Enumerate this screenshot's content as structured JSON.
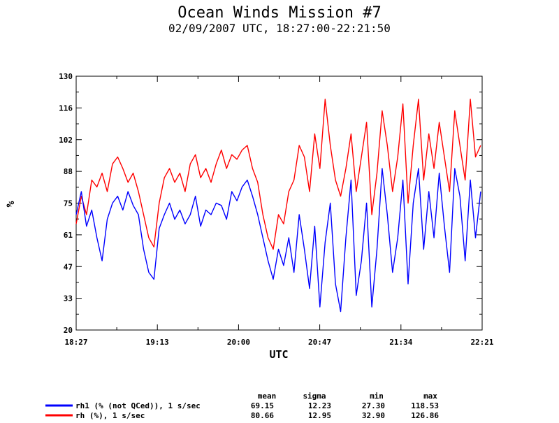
{
  "chart_data": {
    "type": "line",
    "title": "Ocean Winds Mission #7",
    "subtitle": "02/09/2007  UTC, 18:27:00-22:21:50",
    "xlabel": "UTC",
    "ylabel": "%",
    "x_tick_labels": [
      "18:27",
      "19:13",
      "20:00",
      "20:47",
      "21:34",
      "22:21"
    ],
    "y_tick_labels": [
      "20",
      "33",
      "47",
      "61",
      "75",
      "88",
      "102",
      "116",
      "130"
    ],
    "x_range": [
      "18:27:00",
      "22:21:50"
    ],
    "ylim": [
      20,
      130
    ],
    "grid": false,
    "stats_headers": [
      "mean",
      "sigma",
      "min",
      "max"
    ],
    "series": [
      {
        "name": "rh1 (% (not QCed)), 1 s/sec",
        "color": "#0000ff",
        "stats": [
          "69.15",
          "12.23",
          "27.30",
          "118.53"
        ],
        "x": [
          "18:27",
          "18:30",
          "18:33",
          "18:36",
          "18:39",
          "18:42",
          "18:45",
          "18:48",
          "18:51",
          "18:54",
          "18:57",
          "19:00",
          "19:03",
          "19:06",
          "19:09",
          "19:12",
          "19:15",
          "19:18",
          "19:21",
          "19:24",
          "19:27",
          "19:30",
          "19:33",
          "19:36",
          "19:39",
          "19:42",
          "19:45",
          "19:48",
          "19:51",
          "19:54",
          "19:57",
          "20:00",
          "20:03",
          "20:06",
          "20:09",
          "20:12",
          "20:15",
          "20:18",
          "20:21",
          "20:24",
          "20:27",
          "20:30",
          "20:33",
          "20:36",
          "20:39",
          "20:42",
          "20:45",
          "20:48",
          "20:51",
          "20:54",
          "20:57",
          "21:00",
          "21:03",
          "21:06",
          "21:09",
          "21:12",
          "21:15",
          "21:18",
          "21:21",
          "21:24",
          "21:27",
          "21:30",
          "21:33",
          "21:36",
          "21:39",
          "21:42",
          "21:45",
          "21:48",
          "21:51",
          "21:54",
          "21:57",
          "22:00",
          "22:03",
          "22:06",
          "22:09",
          "22:12",
          "22:15",
          "22:18",
          "22:21"
        ],
        "y": [
          70,
          80,
          65,
          72,
          60,
          50,
          68,
          75,
          78,
          72,
          80,
          74,
          70,
          55,
          45,
          42,
          64,
          70,
          75,
          68,
          72,
          66,
          70,
          78,
          65,
          72,
          70,
          75,
          74,
          68,
          80,
          76,
          82,
          85,
          78,
          70,
          60,
          50,
          42,
          55,
          48,
          60,
          45,
          70,
          55,
          38,
          65,
          30,
          58,
          75,
          40,
          28,
          60,
          85,
          35,
          50,
          75,
          30,
          55,
          90,
          70,
          45,
          60,
          85,
          40,
          75,
          90,
          55,
          80,
          60,
          88,
          65,
          45,
          90,
          78,
          50,
          85,
          60,
          80
        ]
      },
      {
        "name": "rh (%), 1 s/sec",
        "color": "#ff0000",
        "stats": [
          "80.66",
          "12.95",
          "32.90",
          "126.86"
        ],
        "x": [
          "18:27",
          "18:30",
          "18:33",
          "18:36",
          "18:39",
          "18:42",
          "18:45",
          "18:48",
          "18:51",
          "18:54",
          "18:57",
          "19:00",
          "19:03",
          "19:06",
          "19:09",
          "19:12",
          "19:15",
          "19:18",
          "19:21",
          "19:24",
          "19:27",
          "19:30",
          "19:33",
          "19:36",
          "19:39",
          "19:42",
          "19:45",
          "19:48",
          "19:51",
          "19:54",
          "19:57",
          "20:00",
          "20:03",
          "20:06",
          "20:09",
          "20:12",
          "20:15",
          "20:18",
          "20:21",
          "20:24",
          "20:27",
          "20:30",
          "20:33",
          "20:36",
          "20:39",
          "20:42",
          "20:45",
          "20:48",
          "20:51",
          "20:54",
          "20:57",
          "21:00",
          "21:03",
          "21:06",
          "21:09",
          "21:12",
          "21:15",
          "21:18",
          "21:21",
          "21:24",
          "21:27",
          "21:30",
          "21:33",
          "21:36",
          "21:39",
          "21:42",
          "21:45",
          "21:48",
          "21:51",
          "21:54",
          "21:57",
          "22:00",
          "22:03",
          "22:06",
          "22:09",
          "22:12",
          "22:15",
          "22:18",
          "22:21"
        ],
        "y": [
          66,
          78,
          70,
          85,
          82,
          88,
          80,
          92,
          95,
          90,
          84,
          88,
          80,
          70,
          60,
          56,
          75,
          86,
          90,
          84,
          88,
          80,
          92,
          96,
          86,
          90,
          84,
          92,
          98,
          90,
          96,
          94,
          98,
          100,
          90,
          84,
          70,
          60,
          55,
          70,
          66,
          80,
          85,
          100,
          95,
          80,
          105,
          90,
          120,
          100,
          85,
          78,
          90,
          105,
          80,
          95,
          110,
          70,
          88,
          115,
          100,
          80,
          95,
          118,
          75,
          100,
          120,
          85,
          105,
          90,
          110,
          95,
          80,
          115,
          100,
          85,
          120,
          95,
          100
        ]
      }
    ]
  }
}
